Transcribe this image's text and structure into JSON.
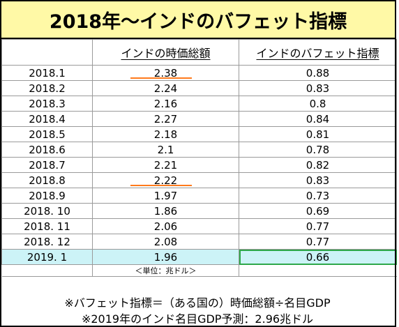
{
  "title": "2018年～インドのバフェット指標",
  "header": {
    "col1": "",
    "col2": "インドの時価総額",
    "col3": "インドのバフェット指標"
  },
  "rows": [
    {
      "date": "2018.1",
      "cap": "2.38",
      "indicator": "0.88"
    },
    {
      "date": "2018.2",
      "cap": "2.24",
      "indicator": "0.83"
    },
    {
      "date": "2018.3",
      "cap": "2.16",
      "indicator": "0.8"
    },
    {
      "date": "2018.4",
      "cap": "2.27",
      "indicator": "0.84"
    },
    {
      "date": "2018.5",
      "cap": "2.18",
      "indicator": "0.81"
    },
    {
      "date": "2018.6",
      "cap": "2.1",
      "indicator": "0.78"
    },
    {
      "date": "2018.7",
      "cap": "2.21",
      "indicator": "0.82"
    },
    {
      "date": "2018.8",
      "cap": "2.22",
      "indicator": "0.83"
    },
    {
      "date": "2018.9",
      "cap": "1.97",
      "indicator": "0.73"
    },
    {
      "date": "2018. 10",
      "cap": "1.86",
      "indicator": "0.69"
    },
    {
      "date": "2018. 11",
      "cap": "2.06",
      "indicator": "0.77"
    },
    {
      "date": "2018. 12",
      "cap": "2.08",
      "indicator": "0.77"
    },
    {
      "date": "2019. 1",
      "cap": "1.96",
      "indicator": "0.66"
    }
  ],
  "unit_note": "＜単位：兆ドル＞",
  "footnote1": "※バフェット指標＝（ある国の）時価総額÷名目GDP",
  "footnote2": "※2019年のインド名目GDP予測：2.96兆ドル",
  "colors": {
    "title_bg": "#fff9a6",
    "highlight_bg": "#ccf3f7",
    "highlight_box": "#2ea84a",
    "mark": "#ff7a1c"
  }
}
